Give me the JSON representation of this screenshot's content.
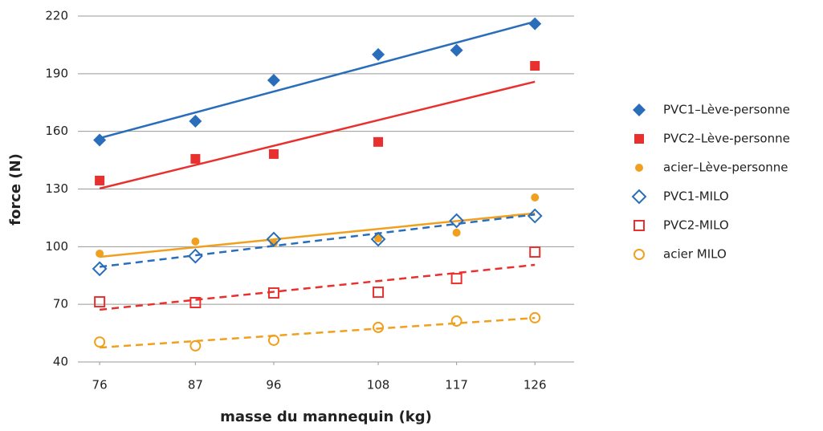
{
  "chart_data": {
    "type": "scatter",
    "xlabel": "masse du mannequin (kg)",
    "ylabel": "force (N)",
    "xlim": [
      73.5,
      130.5
    ],
    "xticks": [
      76,
      87,
      96,
      108,
      117,
      126
    ],
    "ylim": [
      40,
      220
    ],
    "yticks": [
      40,
      70,
      100,
      130,
      160,
      190,
      220
    ],
    "grid": true,
    "trendline": "linear",
    "legend": "right",
    "x": [
      76,
      87,
      96,
      108,
      117,
      126
    ],
    "series": [
      {
        "name": "PVC1–Lève-personne",
        "color": "#2a6ebb",
        "marker": "diamond",
        "filled": true,
        "dash": false,
        "values": [
          155.5,
          165.3,
          186.6,
          200,
          202.2,
          216
        ]
      },
      {
        "name": "PVC2–Lève-personne",
        "color": "#e8312f",
        "marker": "square",
        "filled": true,
        "dash": false,
        "values": [
          134.4,
          145.7,
          148.2,
          154.5,
          null,
          194.1
        ]
      },
      {
        "name": "acier–Lève-personne",
        "color": "#f0a01e",
        "marker": "circle",
        "filled": true,
        "dash": false,
        "values": [
          96.4,
          102.7,
          101.8,
          104.3,
          107.3,
          125.6
        ]
      },
      {
        "name": "PVC1-MILO",
        "color": "#2a6ebb",
        "marker": "diamond",
        "filled": false,
        "dash": true,
        "values": [
          88.5,
          95.1,
          103.9,
          103.9,
          113.5,
          116
        ]
      },
      {
        "name": "PVC2-MILO",
        "color": "#e8312f",
        "marker": "square",
        "filled": false,
        "dash": true,
        "values": [
          71.3,
          70.9,
          75.9,
          76.3,
          83.4,
          97.2
        ]
      },
      {
        "name": "acier MILO",
        "color": "#f0a01e",
        "marker": "circle",
        "filled": false,
        "dash": true,
        "values": [
          50.4,
          48.4,
          51.3,
          58,
          61.3,
          63
        ]
      }
    ]
  }
}
